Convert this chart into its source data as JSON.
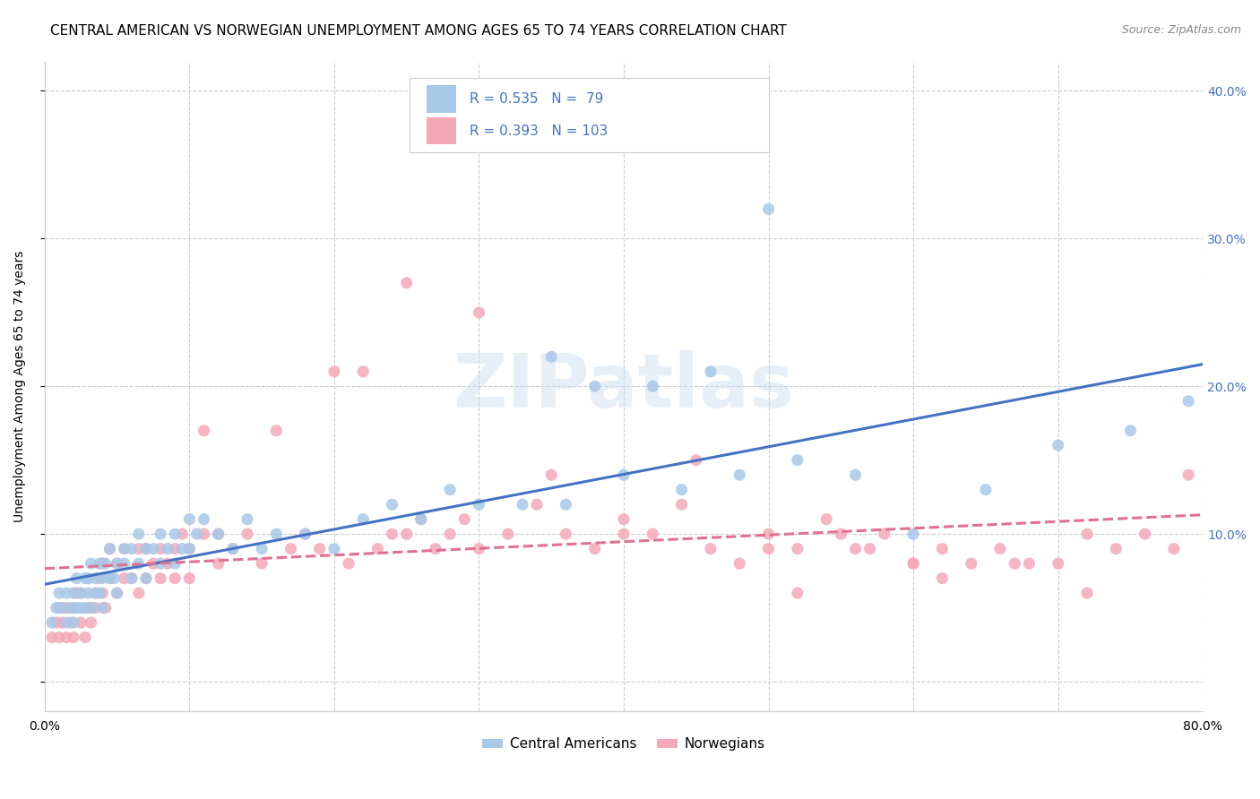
{
  "title": "CENTRAL AMERICAN VS NORWEGIAN UNEMPLOYMENT AMONG AGES 65 TO 74 YEARS CORRELATION CHART",
  "source": "Source: ZipAtlas.com",
  "ylabel": "Unemployment Among Ages 65 to 74 years",
  "xlim": [
    0.0,
    0.8
  ],
  "ylim": [
    -0.02,
    0.42
  ],
  "blue_R": 0.535,
  "blue_N": 79,
  "pink_R": 0.393,
  "pink_N": 103,
  "blue_color": "#a8c8e8",
  "pink_color": "#f4a8b8",
  "blue_line_color": "#4472c4",
  "pink_line_color": "#e07090",
  "label_color": "#4472c4",
  "legend_label_blue": "Central Americans",
  "legend_label_pink": "Norwegians",
  "watermark": "ZIPatlas",
  "title_fontsize": 11,
  "axis_label_fontsize": 10,
  "tick_fontsize": 10,
  "blue_scatter_x": [
    0.005,
    0.008,
    0.01,
    0.012,
    0.015,
    0.015,
    0.018,
    0.02,
    0.02,
    0.022,
    0.022,
    0.025,
    0.025,
    0.028,
    0.028,
    0.03,
    0.03,
    0.032,
    0.032,
    0.035,
    0.035,
    0.038,
    0.038,
    0.04,
    0.04,
    0.042,
    0.045,
    0.045,
    0.048,
    0.05,
    0.05,
    0.055,
    0.055,
    0.06,
    0.06,
    0.065,
    0.065,
    0.07,
    0.07,
    0.075,
    0.08,
    0.08,
    0.085,
    0.09,
    0.09,
    0.095,
    0.1,
    0.1,
    0.105,
    0.11,
    0.12,
    0.13,
    0.14,
    0.15,
    0.16,
    0.18,
    0.2,
    0.22,
    0.24,
    0.26,
    0.28,
    0.3,
    0.33,
    0.36,
    0.4,
    0.44,
    0.48,
    0.52,
    0.56,
    0.6,
    0.65,
    0.7,
    0.75,
    0.79,
    0.35,
    0.38,
    0.42,
    0.46,
    0.5
  ],
  "blue_scatter_y": [
    0.04,
    0.05,
    0.06,
    0.05,
    0.04,
    0.06,
    0.05,
    0.06,
    0.04,
    0.05,
    0.07,
    0.05,
    0.06,
    0.05,
    0.07,
    0.06,
    0.07,
    0.05,
    0.08,
    0.06,
    0.07,
    0.06,
    0.08,
    0.07,
    0.05,
    0.08,
    0.07,
    0.09,
    0.07,
    0.08,
    0.06,
    0.08,
    0.09,
    0.07,
    0.09,
    0.08,
    0.1,
    0.09,
    0.07,
    0.09,
    0.08,
    0.1,
    0.09,
    0.1,
    0.08,
    0.09,
    0.09,
    0.11,
    0.1,
    0.11,
    0.1,
    0.09,
    0.11,
    0.09,
    0.1,
    0.1,
    0.09,
    0.11,
    0.12,
    0.11,
    0.13,
    0.12,
    0.12,
    0.12,
    0.14,
    0.13,
    0.14,
    0.15,
    0.14,
    0.1,
    0.13,
    0.16,
    0.17,
    0.19,
    0.22,
    0.2,
    0.2,
    0.21,
    0.32
  ],
  "pink_scatter_x": [
    0.005,
    0.008,
    0.01,
    0.01,
    0.012,
    0.015,
    0.015,
    0.018,
    0.02,
    0.02,
    0.022,
    0.025,
    0.025,
    0.028,
    0.03,
    0.03,
    0.032,
    0.035,
    0.035,
    0.038,
    0.04,
    0.04,
    0.042,
    0.045,
    0.045,
    0.05,
    0.05,
    0.055,
    0.055,
    0.06,
    0.065,
    0.065,
    0.07,
    0.07,
    0.075,
    0.08,
    0.08,
    0.085,
    0.09,
    0.09,
    0.095,
    0.1,
    0.1,
    0.11,
    0.11,
    0.12,
    0.12,
    0.13,
    0.14,
    0.15,
    0.16,
    0.17,
    0.18,
    0.19,
    0.2,
    0.21,
    0.22,
    0.23,
    0.24,
    0.25,
    0.26,
    0.27,
    0.28,
    0.29,
    0.3,
    0.32,
    0.34,
    0.36,
    0.38,
    0.4,
    0.42,
    0.44,
    0.46,
    0.48,
    0.5,
    0.52,
    0.54,
    0.56,
    0.58,
    0.6,
    0.62,
    0.64,
    0.66,
    0.68,
    0.7,
    0.72,
    0.74,
    0.76,
    0.78,
    0.79,
    0.25,
    0.3,
    0.35,
    0.4,
    0.45,
    0.5,
    0.55,
    0.6,
    0.52,
    0.57,
    0.62,
    0.67,
    0.72
  ],
  "pink_scatter_y": [
    0.03,
    0.04,
    0.03,
    0.05,
    0.04,
    0.05,
    0.03,
    0.04,
    0.05,
    0.03,
    0.06,
    0.04,
    0.06,
    0.03,
    0.05,
    0.07,
    0.04,
    0.06,
    0.05,
    0.07,
    0.06,
    0.08,
    0.05,
    0.07,
    0.09,
    0.06,
    0.08,
    0.07,
    0.09,
    0.07,
    0.09,
    0.06,
    0.07,
    0.09,
    0.08,
    0.07,
    0.09,
    0.08,
    0.09,
    0.07,
    0.1,
    0.09,
    0.07,
    0.1,
    0.17,
    0.08,
    0.1,
    0.09,
    0.1,
    0.08,
    0.17,
    0.09,
    0.1,
    0.09,
    0.21,
    0.08,
    0.21,
    0.09,
    0.1,
    0.1,
    0.11,
    0.09,
    0.1,
    0.11,
    0.09,
    0.1,
    0.12,
    0.1,
    0.09,
    0.11,
    0.1,
    0.12,
    0.09,
    0.08,
    0.1,
    0.09,
    0.11,
    0.09,
    0.1,
    0.08,
    0.09,
    0.08,
    0.09,
    0.08,
    0.08,
    0.1,
    0.09,
    0.1,
    0.09,
    0.14,
    0.27,
    0.25,
    0.14,
    0.1,
    0.15,
    0.09,
    0.1,
    0.08,
    0.06,
    0.09,
    0.07,
    0.08,
    0.06
  ]
}
